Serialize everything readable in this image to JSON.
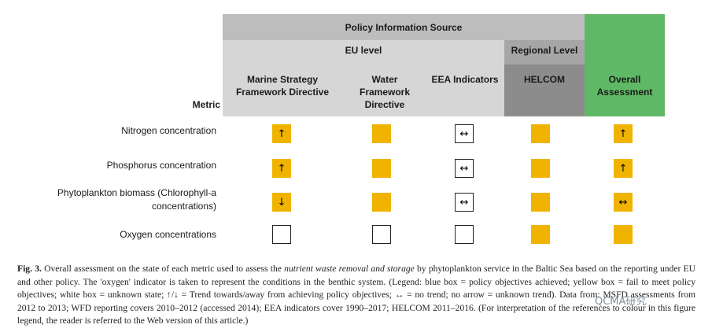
{
  "header": {
    "source_title": "Policy Information Source",
    "eu_level": "EU level",
    "regional_level": "Regional Level",
    "metric": "Metric",
    "columns": {
      "msfd": "Marine Strategy Framework Directive",
      "wfd": "Water Framework Directive",
      "eea": "EEA Indicators",
      "helcom": "HELCOM",
      "overall": "Overall Assessment"
    }
  },
  "colors": {
    "source_header": "#bdbdbd",
    "eu_header": "#d6d6d6",
    "regional_header": "#a6a6a6",
    "helcom_header": "#8c8c8c",
    "overall_header": "#5fb865",
    "yellow": "#f0b400"
  },
  "rows": [
    {
      "metric": "Nitrogen concentration",
      "cells": [
        {
          "color": "yellow",
          "arrow": "↑"
        },
        {
          "color": "yellow",
          "arrow": ""
        },
        {
          "color": "white",
          "arrow": "↔"
        },
        {
          "color": "yellow",
          "arrow": ""
        },
        {
          "color": "yellow",
          "arrow": "↑"
        }
      ]
    },
    {
      "metric": "Phosphorus concentration",
      "cells": [
        {
          "color": "yellow",
          "arrow": "↑"
        },
        {
          "color": "yellow",
          "arrow": ""
        },
        {
          "color": "white",
          "arrow": "↔"
        },
        {
          "color": "yellow",
          "arrow": ""
        },
        {
          "color": "yellow",
          "arrow": "↑"
        }
      ]
    },
    {
      "metric_line1": "Phytoplankton biomass (Chlorophyll-a",
      "metric_line2": "concentrations)",
      "cells": [
        {
          "color": "yellow",
          "arrow": "↓"
        },
        {
          "color": "yellow",
          "arrow": ""
        },
        {
          "color": "white",
          "arrow": "↔"
        },
        {
          "color": "yellow",
          "arrow": ""
        },
        {
          "color": "yellow",
          "arrow": "↔"
        }
      ]
    },
    {
      "metric": "Oxygen concentrations",
      "cells": [
        {
          "color": "white",
          "arrow": ""
        },
        {
          "color": "white",
          "arrow": ""
        },
        {
          "color": "white",
          "arrow": ""
        },
        {
          "color": "yellow",
          "arrow": ""
        },
        {
          "color": "yellow",
          "arrow": ""
        }
      ]
    }
  ],
  "caption": {
    "label": "Fig. 3.",
    "text_before_italic": " Overall assessment on the state of each metric used to assess the ",
    "italic": "nutrient waste removal and storage",
    "text_after_italic": " by phytoplankton service in the Baltic Sea based on the reporting under EU and other policy. The 'oxygen' indicator is taken to represent the conditions in the benthic system. (Legend: blue box = policy objectives achieved; yellow box = fail to meet policy objectives; white box = unknown state; ↑/↓ = Trend towards/away from achieving policy objectives; ↔ = no trend; no arrow = unknown trend). Data from: MSFD assessments from 2012 to 2013; WFD reporting covers 2010–2012 (accessed 2014); EEA indicators cover 1990–2017; HELCOM 2011–2016. (For interpretation of the references to colour in this figure legend, the reader is referred to the Web version of this article.)"
  },
  "watermark": "QCMA研究"
}
